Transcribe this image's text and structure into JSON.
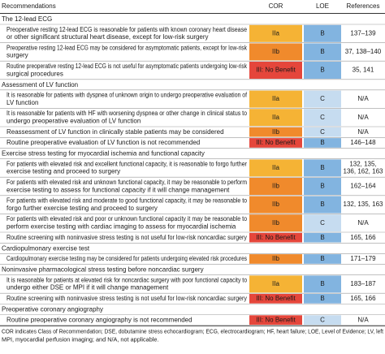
{
  "header": {
    "recommendations": "Recommendations",
    "cor": "COR",
    "loe": "LOE",
    "references": "References"
  },
  "sections": [
    {
      "title": "The 12-lead ECG",
      "rows": [
        {
          "text": [
            "Preoperative resting 12-lead ECG is reasonable for patients with known coronary heart disease",
            "or other significant structural heart disease, except for low-risk surgery"
          ],
          "cor": "IIa",
          "cor_color": "#f5b335",
          "loe": "B",
          "loe_color": "#82b4e0",
          "references": [
            "137–139"
          ]
        },
        {
          "text": [
            "Preoperative resting 12-lead ECG may be considered for asymptomatic patients, except for low-risk",
            "surgery"
          ],
          "cor": "IIb",
          "cor_color": "#f08a2c",
          "loe": "B",
          "loe_color": "#82b4e0",
          "references": [
            "37, 138–140"
          ]
        },
        {
          "text": [
            "Routine preoperative resting 12-lead ECG is not useful for asymptomatic patients undergoing low-risk",
            "surgical procedures"
          ],
          "cor": "III: No Benefit",
          "cor_color": "#e5463b",
          "loe": "B",
          "loe_color": "#82b4e0",
          "references": [
            "35, 141"
          ]
        }
      ]
    },
    {
      "title": "Assessment of LV function",
      "rows": [
        {
          "text": [
            "It is reasonable for patients with dyspnea of unknown origin to undergo preoperative evaluation of",
            "LV function"
          ],
          "cor": "IIa",
          "cor_color": "#f5b335",
          "loe": "C",
          "loe_color": "#c6dcf0",
          "references": [
            "N/A"
          ]
        },
        {
          "text": [
            "It is reasonable for patients with HF with worsening dyspnea or other change in clinical status to",
            "undergo preoperative evaluation of LV function"
          ],
          "cor": "IIa",
          "cor_color": "#f5b335",
          "loe": "C",
          "loe_color": "#c6dcf0",
          "references": [
            "N/A"
          ]
        },
        {
          "text": [
            "Reassessment of LV function in clinically stable patients may be considered"
          ],
          "cor": "IIb",
          "cor_color": "#f08a2c",
          "loe": "C",
          "loe_color": "#c6dcf0",
          "references": [
            "N/A"
          ]
        },
        {
          "text": [
            "Routine preoperative evaluation of LV function is not recommended"
          ],
          "cor": "III: No Benefit",
          "cor_color": "#e5463b",
          "loe": "B",
          "loe_color": "#82b4e0",
          "references": [
            "146–148"
          ]
        }
      ]
    },
    {
      "title": "Exercise stress testing for myocardial ischemia and functional capacity",
      "rows": [
        {
          "text": [
            "For patients with elevated risk and excellent functional capacity, it is reasonable to forgo further",
            "exercise testing and proceed to surgery"
          ],
          "cor": "IIa",
          "cor_color": "#f5b335",
          "loe": "B",
          "loe_color": "#82b4e0",
          "references": [
            "132, 135,",
            "136, 162, 163"
          ]
        },
        {
          "text": [
            "For patients with elevated risk and unknown functional capacity, it may be reasonable to perform",
            "exercise testing to assess for functional capacity if it will change management"
          ],
          "cor": "IIb",
          "cor_color": "#f08a2c",
          "loe": "B",
          "loe_color": "#82b4e0",
          "references": [
            "162–164"
          ]
        },
        {
          "text": [
            "For patients with elevated risk and moderate to good functional capacity, it may be reasonable to",
            "forgo further exercise testing and proceed to surgery"
          ],
          "cor": "IIb",
          "cor_color": "#f08a2c",
          "loe": "B",
          "loe_color": "#82b4e0",
          "references": [
            "132, 135, 163"
          ]
        },
        {
          "text": [
            "For patients with elevated risk and poor or unknown functional capacity it may be reasonable to",
            "perform exercise testing with cardiac imaging to assess for myocardial ischemia"
          ],
          "cor": "IIb",
          "cor_color": "#f08a2c",
          "loe": "C",
          "loe_color": "#c6dcf0",
          "references": [
            "N/A"
          ]
        },
        {
          "text": [
            "Routine screening with noninvasive stress testing is not useful for low-risk noncardiac surgery"
          ],
          "cor": "III: No Benefit",
          "cor_color": "#e5463b",
          "loe": "B",
          "loe_color": "#82b4e0",
          "references": [
            "165, 166"
          ]
        }
      ]
    },
    {
      "title": "Cardiopulmonary exercise test",
      "rows": [
        {
          "text": [
            "Cardiopulmonary exercise testing may be considered for patients undergoing elevated risk procedures"
          ],
          "cor": "IIb",
          "cor_color": "#f08a2c",
          "loe": "B",
          "loe_color": "#82b4e0",
          "references": [
            "171–179"
          ]
        }
      ]
    },
    {
      "title": "Noninvasive pharmacological stress testing before noncardiac surgery",
      "rows": [
        {
          "text": [
            "It is reasonable for patients at elevated risk for noncardiac surgery with poor functional capacity to",
            "undergo either DSE or MPI if it will change management"
          ],
          "cor": "IIa",
          "cor_color": "#f5b335",
          "loe": "B",
          "loe_color": "#82b4e0",
          "references": [
            "183–187"
          ]
        },
        {
          "text": [
            "Routine screening with noninvasive stress testing is not useful for low-risk noncardiac surgery"
          ],
          "cor": "III: No Benefit",
          "cor_color": "#e5463b",
          "loe": "B",
          "loe_color": "#82b4e0",
          "references": [
            "165, 166"
          ]
        }
      ]
    },
    {
      "title": "Preoperative coronary angiography",
      "rows": [
        {
          "text": [
            "Routine preoperative coronary angiography is not recommended"
          ],
          "cor": "III: No Benefit",
          "cor_color": "#e5463b",
          "loe": "C",
          "loe_color": "#c6dcf0",
          "references": [
            "N/A"
          ]
        }
      ]
    }
  ],
  "footnote": [
    "COR indicates Class of Recommendation; DSE, dobutamine stress echocardiogram; ECG, electrocardiogram; HF, heart failure; LOE, Level of Evidence; LV, left",
    "MPI, myocardial perfusion imaging; and N/A, not applicable."
  ]
}
